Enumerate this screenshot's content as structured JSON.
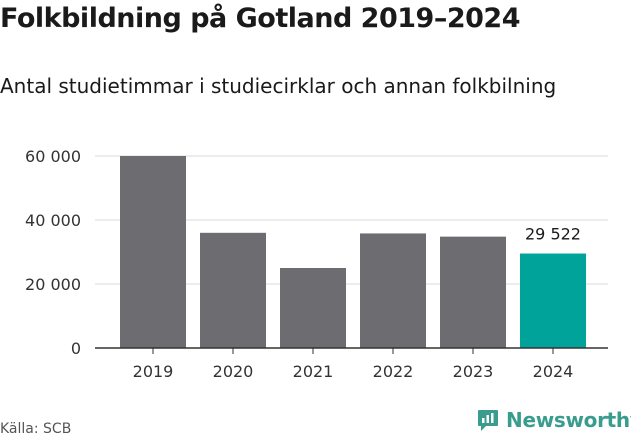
{
  "title": "Folkbildning på Gotland 2019–2024",
  "subtitle": "Antal studietimmar i studiecirklar och annan folkbilning",
  "source": "Källa: SCB",
  "brand": {
    "name": "Newsworthy",
    "icon": "newsworthy-logo-icon",
    "color": "#3a9c8f"
  },
  "chart_data": {
    "type": "bar",
    "categories": [
      "2019",
      "2020",
      "2021",
      "2022",
      "2023",
      "2024"
    ],
    "values": [
      60000,
      36000,
      25000,
      35800,
      34800,
      29522
    ],
    "ylim": [
      0,
      60000
    ],
    "yticks": [
      0,
      20000,
      40000,
      60000
    ],
    "ytick_labels": [
      "0",
      "20 000",
      "40 000",
      "60 000"
    ],
    "annotation": {
      "category": "2024",
      "label": "29 522"
    },
    "colors": {
      "default": "#6d6c70",
      "highlight": "#00a39a"
    },
    "highlight_category": "2024",
    "grid": true,
    "xlabel": "",
    "ylabel": ""
  }
}
